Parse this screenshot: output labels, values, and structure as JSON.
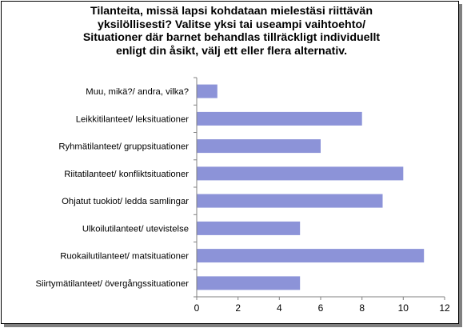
{
  "chart_data": {
    "type": "bar",
    "orientation": "horizontal",
    "title_lines": [
      "Tilanteita, missä lapsi kohdataan mielestäsi riittävän",
      "yksilöllisesti? Valitse yksi tai useampi vaihtoehto/",
      "Situationer där barnet behandlas tillräckligt individuellt",
      "enligt din åsikt, välj ett eller flera alternativ."
    ],
    "categories": [
      "Muu, mikä?/ andra, vilka?",
      "Leikkitilanteet/ leksituationer",
      "Ryhmätilanteet/ gruppsituationer",
      "Riitatilanteet/ konfliktsituationer",
      "Ohjatut tuokiot/ ledda samlingar",
      "Ulkoilutilanteet/ utevistelse",
      "Ruokailutilanteet/ matsituationer",
      "Siirtymätilanteet/ övergångssituationer"
    ],
    "values": [
      1,
      8,
      6,
      10,
      9,
      5,
      11,
      5
    ],
    "xlim": [
      0,
      12
    ],
    "xticks": [
      "0",
      "2",
      "4",
      "6",
      "8",
      "10",
      "12"
    ],
    "bar_color": "#8c93d8",
    "grid": false,
    "legend": "none"
  }
}
